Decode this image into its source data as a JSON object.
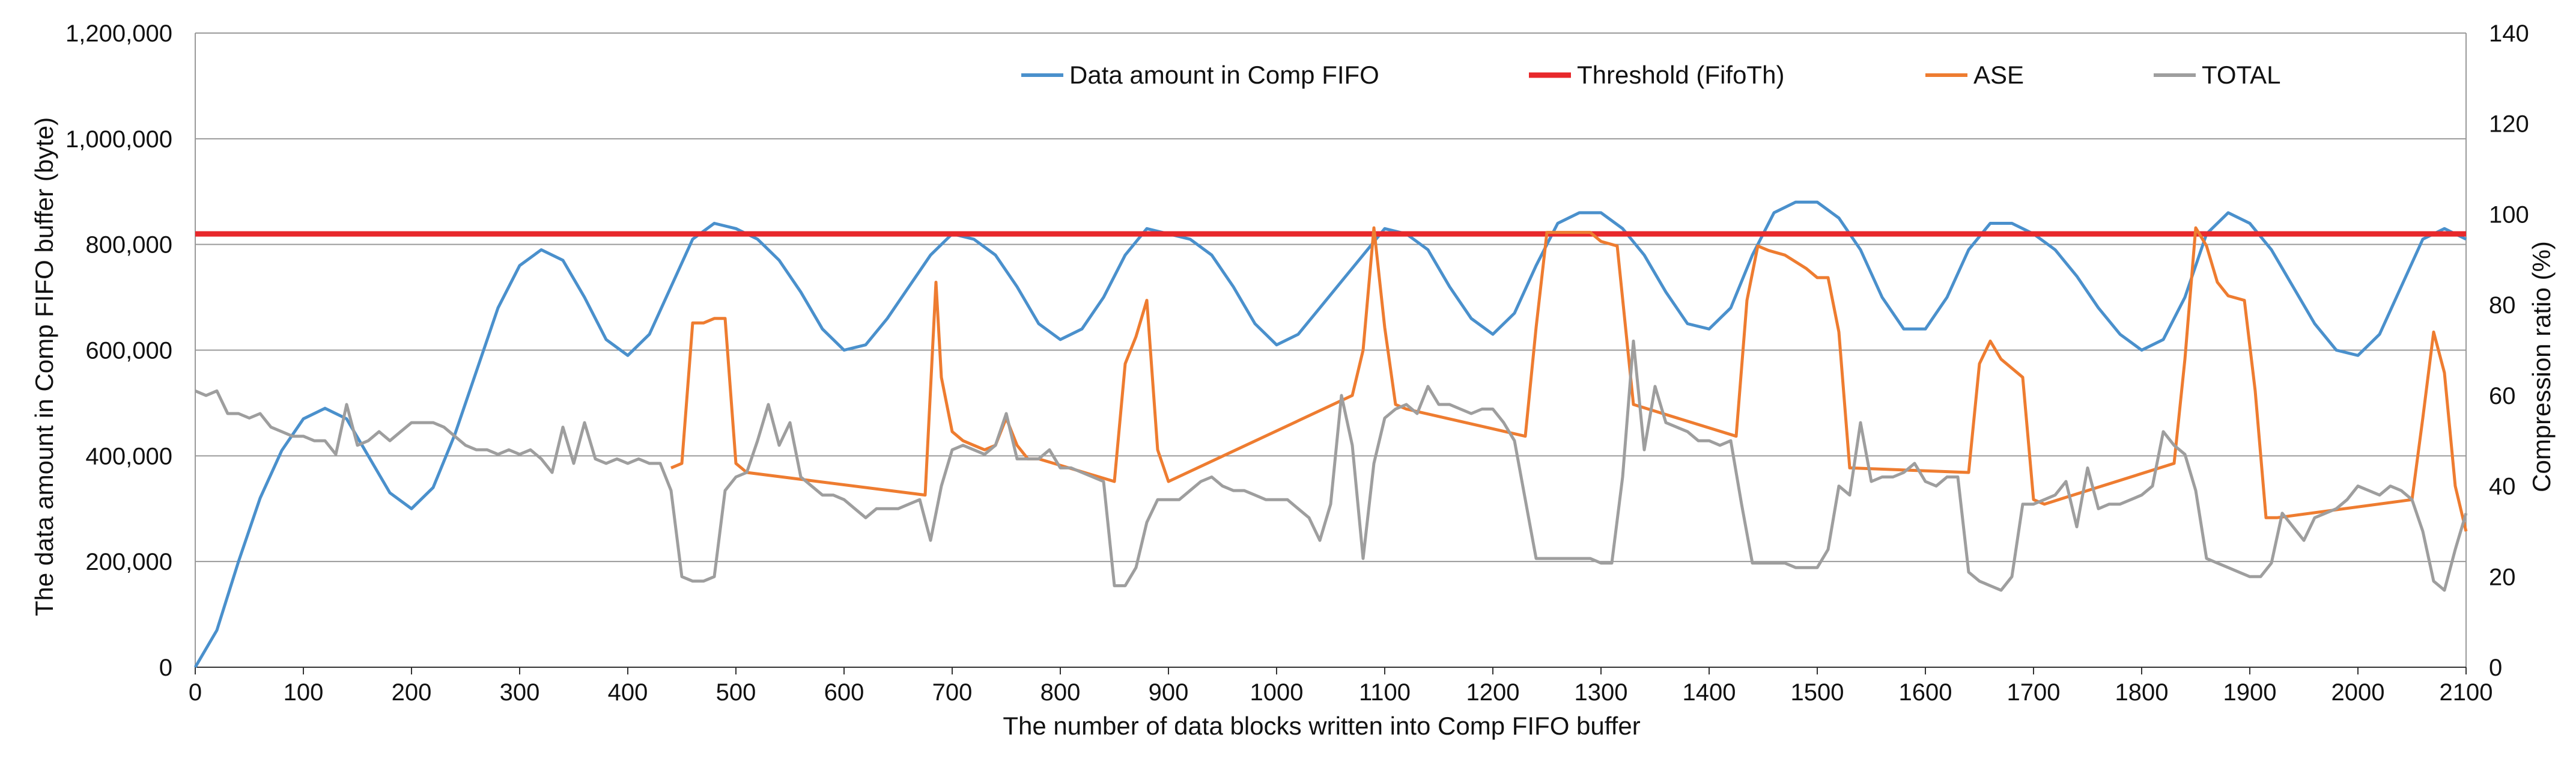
{
  "chart_data": {
    "type": "line",
    "title": "",
    "xlabel": "The number of data blocks written into Comp FIFO buffer",
    "ylabel_left": "The data amount in  Comp FIFO buffer (byte)",
    "ylabel_right": "Compression ratio (%)",
    "xlim": [
      0,
      2100
    ],
    "ylim_left": [
      0,
      1200000
    ],
    "ylim_right": [
      0,
      140
    ],
    "x_ticks": [
      "0",
      "100",
      "200",
      "300",
      "400",
      "500",
      "600",
      "700",
      "800",
      "900",
      "1000",
      "1100",
      "1200",
      "1300",
      "1400",
      "1500",
      "1600",
      "1700",
      "1800",
      "1900",
      "2000",
      "2100"
    ],
    "y_left_ticks": [
      "0",
      "200,000",
      "400,000",
      "600,000",
      "800,000",
      "1,000,000",
      "1,200,000"
    ],
    "y_right_ticks": [
      "0",
      "20",
      "40",
      "60",
      "80",
      "100",
      "120",
      "140"
    ],
    "grid": true,
    "legend_position": "top",
    "series": [
      {
        "name": "Data amount in Comp FIFO",
        "axis": "left",
        "color": "#4a90cc",
        "x": [
          0,
          20,
          40,
          60,
          80,
          100,
          120,
          140,
          160,
          180,
          200,
          220,
          240,
          260,
          280,
          300,
          320,
          340,
          360,
          380,
          400,
          420,
          440,
          460,
          480,
          500,
          520,
          540,
          560,
          580,
          600,
          620,
          640,
          660,
          680,
          700,
          720,
          740,
          760,
          780,
          800,
          820,
          840,
          860,
          880,
          900,
          920,
          940,
          960,
          980,
          1000,
          1020,
          1040,
          1060,
          1080,
          1100,
          1120,
          1140,
          1160,
          1180,
          1200,
          1220,
          1240,
          1260,
          1280,
          1300,
          1320,
          1340,
          1360,
          1380,
          1400,
          1420,
          1440,
          1460,
          1480,
          1500,
          1520,
          1540,
          1560,
          1580,
          1600,
          1620,
          1640,
          1660,
          1680,
          1700,
          1720,
          1740,
          1760,
          1780,
          1800,
          1820,
          1840,
          1860,
          1880,
          1900,
          1920,
          1940,
          1960,
          1980,
          2000,
          2020,
          2040,
          2060,
          2080,
          2100
        ],
        "values": [
          0,
          70000,
          200000,
          320000,
          410000,
          470000,
          490000,
          470000,
          400000,
          330000,
          300000,
          340000,
          440000,
          560000,
          680000,
          760000,
          790000,
          770000,
          700000,
          620000,
          590000,
          630000,
          720000,
          810000,
          840000,
          830000,
          810000,
          770000,
          710000,
          640000,
          600000,
          610000,
          660000,
          720000,
          780000,
          820000,
          810000,
          780000,
          720000,
          650000,
          620000,
          640000,
          700000,
          780000,
          830000,
          820000,
          810000,
          780000,
          720000,
          650000,
          610000,
          630000,
          680000,
          730000,
          780000,
          830000,
          820000,
          790000,
          720000,
          660000,
          630000,
          670000,
          760000,
          840000,
          860000,
          860000,
          830000,
          780000,
          710000,
          650000,
          640000,
          680000,
          780000,
          860000,
          880000,
          880000,
          850000,
          790000,
          700000,
          640000,
          640000,
          700000,
          790000,
          840000,
          840000,
          820000,
          790000,
          740000,
          680000,
          630000,
          600000,
          620000,
          700000,
          820000,
          860000,
          840000,
          790000,
          720000,
          650000,
          600000,
          590000,
          630000,
          720000,
          810000,
          830000,
          810000
        ]
      },
      {
        "name": "Threshold (FifoTh)",
        "axis": "left",
        "color": "#e8282b",
        "x": [
          0,
          2100
        ],
        "values": [
          820000,
          820000
        ]
      },
      {
        "name": "ASE",
        "axis": "right",
        "color": "#ee7c30",
        "x": [
          440,
          450,
          460,
          470,
          480,
          490,
          500,
          510,
          675,
          685,
          690,
          700,
          710,
          720,
          730,
          740,
          750,
          760,
          770,
          780,
          850,
          860,
          870,
          880,
          890,
          900,
          1070,
          1080,
          1090,
          1100,
          1110,
          1120,
          1230,
          1240,
          1250,
          1270,
          1290,
          1300,
          1315,
          1330,
          1425,
          1435,
          1445,
          1455,
          1470,
          1490,
          1500,
          1510,
          1520,
          1530,
          1640,
          1650,
          1660,
          1670,
          1690,
          1700,
          1710,
          1830,
          1840,
          1850,
          1860,
          1870,
          1880,
          1895,
          1905,
          1915,
          1925,
          2050,
          2060,
          2070,
          2080,
          2090,
          2100
        ],
        "values": [
          44,
          45,
          76,
          76,
          77,
          77,
          45,
          43,
          38,
          85,
          64,
          52,
          50,
          49,
          48,
          49,
          55,
          49,
          46,
          46,
          41,
          67,
          73,
          81,
          48,
          41,
          60,
          70,
          97,
          75,
          58,
          57,
          51,
          75,
          96,
          96,
          96,
          94,
          93,
          58,
          51,
          81,
          93,
          92,
          91,
          88,
          86,
          86,
          74,
          44,
          43,
          67,
          72,
          68,
          64,
          37,
          36,
          45,
          68,
          97,
          93,
          85,
          82,
          81,
          61,
          33,
          33,
          37,
          55,
          74,
          65,
          40,
          30
        ]
      },
      {
        "name": "TOTAL",
        "axis": "right",
        "color": "#9e9e9e",
        "x": [
          0,
          10,
          20,
          30,
          40,
          50,
          60,
          70,
          80,
          90,
          100,
          110,
          120,
          130,
          140,
          150,
          160,
          170,
          180,
          190,
          200,
          210,
          220,
          230,
          240,
          250,
          260,
          270,
          280,
          290,
          300,
          310,
          320,
          330,
          340,
          350,
          360,
          370,
          380,
          390,
          400,
          410,
          420,
          430,
          440,
          450,
          460,
          470,
          480,
          490,
          500,
          510,
          520,
          530,
          540,
          550,
          560,
          570,
          580,
          590,
          600,
          610,
          620,
          630,
          640,
          650,
          660,
          670,
          680,
          690,
          700,
          710,
          720,
          730,
          740,
          750,
          760,
          770,
          780,
          790,
          800,
          810,
          820,
          830,
          840,
          850,
          860,
          870,
          880,
          890,
          900,
          910,
          920,
          930,
          940,
          950,
          960,
          970,
          980,
          990,
          1000,
          1010,
          1020,
          1030,
          1040,
          1050,
          1060,
          1070,
          1080,
          1090,
          1100,
          1110,
          1120,
          1130,
          1140,
          1150,
          1160,
          1170,
          1180,
          1190,
          1200,
          1210,
          1220,
          1230,
          1240,
          1250,
          1260,
          1270,
          1280,
          1290,
          1300,
          1310,
          1320,
          1330,
          1340,
          1350,
          1360,
          1370,
          1380,
          1390,
          1400,
          1410,
          1420,
          1430,
          1440,
          1450,
          1460,
          1470,
          1480,
          1490,
          1500,
          1510,
          1520,
          1530,
          1540,
          1550,
          1560,
          1570,
          1580,
          1590,
          1600,
          1610,
          1620,
          1630,
          1640,
          1650,
          1660,
          1670,
          1680,
          1690,
          1700,
          1710,
          1720,
          1730,
          1740,
          1750,
          1760,
          1770,
          1780,
          1790,
          1800,
          1810,
          1820,
          1830,
          1840,
          1850,
          1860,
          1870,
          1880,
          1890,
          1900,
          1910,
          1920,
          1930,
          1940,
          1950,
          1960,
          1970,
          1980,
          1990,
          2000,
          2010,
          2020,
          2030,
          2040,
          2050,
          2060,
          2070,
          2080,
          2090,
          2100
        ],
        "values": [
          61,
          60,
          61,
          56,
          56,
          55,
          56,
          53,
          52,
          51,
          51,
          50,
          50,
          47,
          58,
          49,
          50,
          52,
          50,
          52,
          54,
          54,
          54,
          53,
          51,
          49,
          48,
          48,
          47,
          48,
          47,
          48,
          46,
          43,
          53,
          45,
          54,
          46,
          45,
          46,
          45,
          46,
          45,
          45,
          39,
          20,
          19,
          19,
          20,
          39,
          42,
          43,
          50,
          58,
          49,
          54,
          42,
          40,
          38,
          38,
          37,
          35,
          33,
          35,
          35,
          35,
          36,
          37,
          28,
          40,
          48,
          49,
          48,
          47,
          49,
          56,
          46,
          46,
          46,
          48,
          44,
          44,
          43,
          42,
          41,
          18,
          18,
          22,
          32,
          37,
          37,
          37,
          39,
          41,
          42,
          40,
          39,
          39,
          38,
          37,
          37,
          37,
          35,
          33,
          28,
          36,
          60,
          49,
          24,
          45,
          55,
          57,
          58,
          56,
          62,
          58,
          58,
          57,
          56,
          57,
          57,
          54,
          50,
          37,
          24,
          24,
          24,
          24,
          24,
          24,
          23,
          23,
          42,
          72,
          48,
          62,
          54,
          53,
          52,
          50,
          50,
          49,
          50,
          36,
          23,
          23,
          23,
          23,
          22,
          22,
          22,
          26,
          40,
          38,
          54,
          41,
          42,
          42,
          43,
          45,
          41,
          40,
          42,
          42,
          21,
          19,
          18,
          17,
          20,
          36,
          36,
          37,
          38,
          41,
          31,
          44,
          35,
          36,
          36,
          37,
          38,
          40,
          52,
          49,
          47,
          39,
          24,
          23,
          22,
          21,
          20,
          20,
          23,
          34,
          31,
          28,
          33,
          34,
          35,
          37,
          40,
          39,
          38,
          40,
          39,
          37,
          30,
          19,
          17,
          26,
          34
        ]
      }
    ]
  }
}
